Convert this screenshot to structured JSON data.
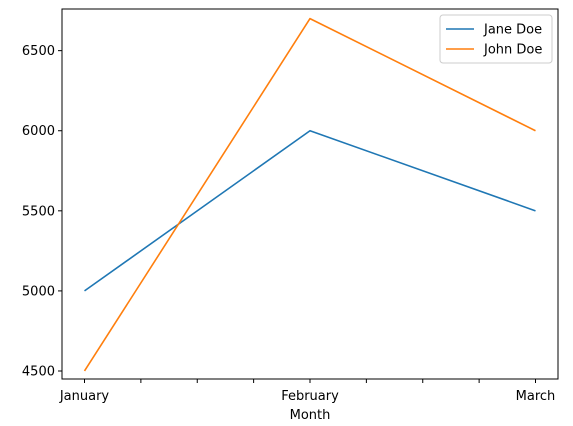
{
  "chart_data": {
    "type": "line",
    "x": [
      "January",
      "February",
      "March"
    ],
    "xticks_positions": [
      0,
      0.25,
      0.5,
      0.75,
      1,
      1.25,
      1.5,
      1.75,
      2
    ],
    "xtick_labels": [
      "January",
      "",
      "",
      "",
      "February",
      "",
      "",
      "",
      "March"
    ],
    "xlabel": "Month",
    "ylabel": "",
    "title": "",
    "ylim": [
      4450,
      6760
    ],
    "yticks": [
      4500,
      5000,
      5500,
      6000,
      6500
    ],
    "grid": false,
    "legend_placement": "top-right",
    "series": [
      {
        "name": "Jane Doe",
        "color": "#1f77b4",
        "values": [
          5000,
          6000,
          5500
        ]
      },
      {
        "name": "John Doe",
        "color": "#ff7f0e",
        "values": [
          4500,
          6700,
          6000
        ]
      }
    ]
  }
}
